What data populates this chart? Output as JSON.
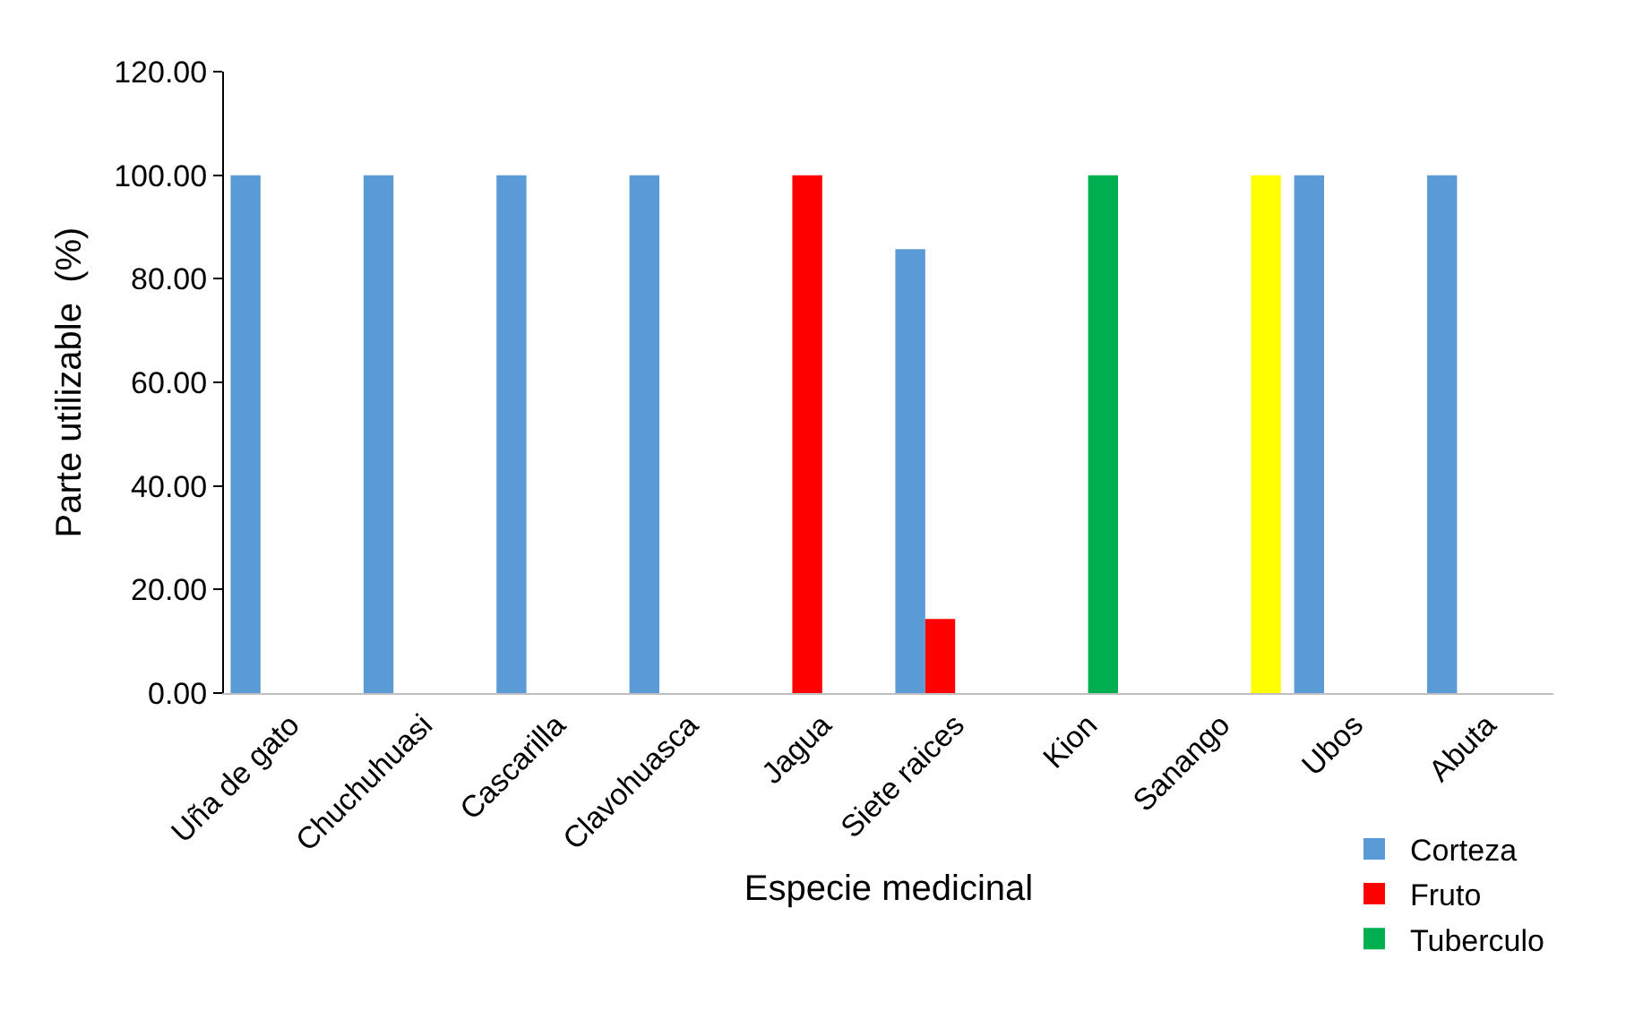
{
  "chart_data": {
    "type": "bar",
    "xlabel": "Especie medicinal",
    "ylabel": "Parte utilizable  (%)",
    "categories": [
      "Uña de gato",
      "Chuchuhuasi",
      "Cascarilla",
      "Clavohuasca",
      "Jagua",
      "Siete raices",
      "Kion",
      "Sanango",
      "Ubos",
      "Abuta"
    ],
    "series": [
      {
        "name": "Corteza",
        "color": "#5b9bd5",
        "values": [
          100,
          100,
          100,
          100,
          null,
          85.7,
          null,
          null,
          100,
          100
        ]
      },
      {
        "name": "Fruto",
        "color": "#ff0000",
        "values": [
          null,
          null,
          null,
          null,
          100,
          14.3,
          null,
          null,
          null,
          null
        ]
      },
      {
        "name": "Tuberculo",
        "color": "#00b050",
        "values": [
          null,
          null,
          null,
          null,
          null,
          null,
          100,
          null,
          null,
          null
        ]
      },
      {
        "color": "#ffff00",
        "values": [
          null,
          null,
          null,
          null,
          null,
          null,
          null,
          100,
          null,
          null
        ]
      }
    ],
    "ylim": [
      0,
      120
    ],
    "yticks": [
      {
        "value": 0,
        "label": "0.00"
      },
      {
        "value": 20,
        "label": "20.00"
      },
      {
        "value": 40,
        "label": "40.00"
      },
      {
        "value": 60,
        "label": "60.00"
      },
      {
        "value": 80,
        "label": "80.00"
      },
      {
        "value": 100,
        "label": "100.00"
      },
      {
        "value": 120,
        "label": "120.00"
      }
    ],
    "grid": false,
    "legend": "bottom right"
  }
}
